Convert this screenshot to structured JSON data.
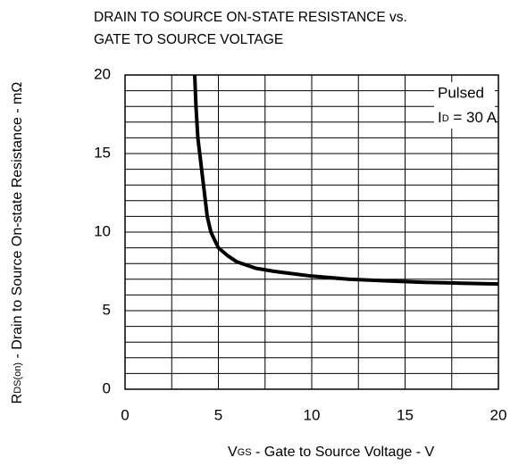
{
  "chart_data": {
    "type": "line",
    "title": [
      "DRAIN TO SOURCE ON-STATE RESISTANCE vs.",
      "GATE TO SOURCE VOLTAGE"
    ],
    "xlabel": [
      "V",
      "GS",
      " - Gate to Source Voltage - V"
    ],
    "ylabel": [
      "R",
      "DS(on)",
      " - Drain to Source On-state Resistance - mΩ"
    ],
    "annotation": {
      "line1": "Pulsed",
      "line2": [
        "I",
        "D",
        " = 30 A"
      ]
    },
    "xlim": [
      0,
      20
    ],
    "ylim": [
      0,
      20
    ],
    "xticks": [
      0,
      5,
      10,
      15,
      20
    ],
    "yticks": [
      0,
      5,
      10,
      15,
      20
    ],
    "x_minor_ticks": [
      2.5,
      7.5,
      12.5,
      17.5
    ],
    "y_minor_ticks": [
      1,
      2,
      3,
      4,
      6,
      7,
      8,
      9,
      11,
      12,
      13,
      14,
      16,
      17,
      18,
      19
    ],
    "grid": true,
    "series": [
      {
        "color": "#000000",
        "x": [
          3.73,
          3.8,
          3.9,
          4.0,
          4.2,
          4.4,
          4.6,
          5,
          5.5,
          6,
          7,
          8,
          10,
          12,
          14,
          16,
          18,
          20
        ],
        "values": [
          20,
          18,
          16,
          15,
          13,
          11,
          10,
          9,
          8.5,
          8.1,
          7.7,
          7.5,
          7.2,
          7.0,
          6.9,
          6.8,
          6.75,
          6.7
        ]
      }
    ]
  }
}
